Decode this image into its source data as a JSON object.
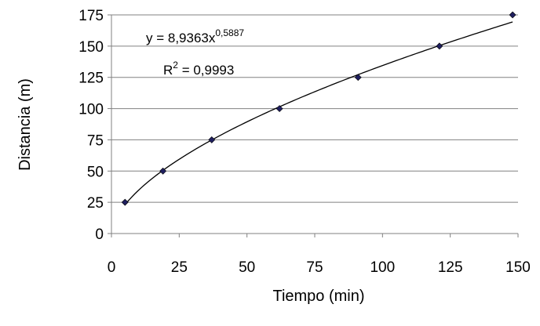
{
  "chart_data": {
    "type": "scatter",
    "title": "",
    "xlabel": "Tiempo (min)",
    "ylabel": "Distancia (m)",
    "xlim": [
      0,
      150
    ],
    "ylim": [
      0,
      175
    ],
    "xticks": [
      0,
      25,
      50,
      75,
      100,
      125,
      150
    ],
    "yticks": [
      0,
      25,
      50,
      75,
      100,
      125,
      150,
      175
    ],
    "grid": "horizontal",
    "legend": "none",
    "series": [
      {
        "x": [
          5,
          19,
          37,
          62,
          91,
          121,
          148
        ],
        "y": [
          25,
          50,
          75,
          100,
          125,
          150,
          175
        ],
        "marker": "diamond",
        "color": "#1f1f5f"
      }
    ],
    "trendline": {
      "type": "power",
      "a": 8.9363,
      "b": 0.5887,
      "color": "#000000"
    },
    "annotations": {
      "equation_prefix": "y = 8,9363x",
      "equation_exponent": "0,5887",
      "r2_prefix": "R",
      "r2_exponent": "2",
      "r2_value": " = 0,9993"
    }
  }
}
